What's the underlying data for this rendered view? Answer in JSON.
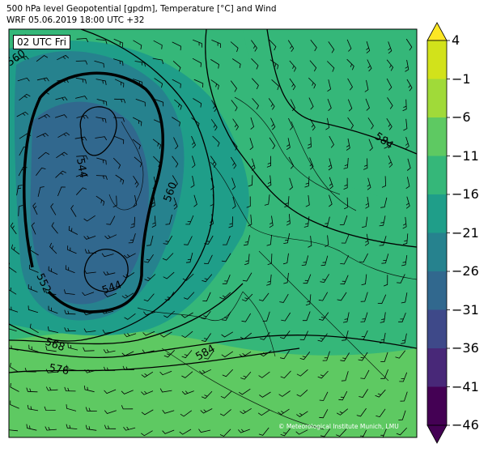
{
  "title_line1": "500 hPa level Geopotential [gpdm], Temperature [°C] and Wind",
  "title_line2": "WRF 05.06.2019 18:00 UTC +32",
  "time_label": "02 UTC Fri",
  "credit": "© Meteorological Institute Munich, LMU",
  "contour_labels": [
    "560",
    "544",
    "552",
    "544",
    "560",
    "568",
    "576",
    "584",
    "584"
  ],
  "colorbar": {
    "ticks": [
      "4",
      "−1",
      "−6",
      "−11",
      "−16",
      "−21",
      "−26",
      "−31",
      "−36",
      "−41",
      "−46"
    ],
    "colors": [
      "#fde725",
      "#d2e21b",
      "#a0da39",
      "#5ec962",
      "#35b779",
      "#1f9e89",
      "#26828e",
      "#31688e",
      "#3e4989",
      "#482878",
      "#440154"
    ]
  }
}
